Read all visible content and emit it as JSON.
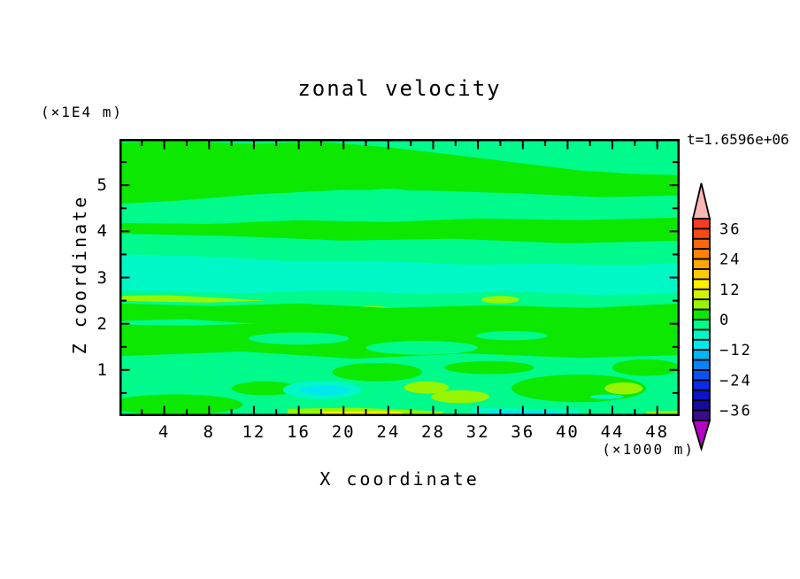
{
  "figure": {
    "title": "zonal velocity",
    "time_annotation": "t=1.6596e+06",
    "z_axis_unit": "(×1E4 m)",
    "x_axis_unit": "(×1000 m)",
    "x_axis_title": "X coordinate",
    "z_axis_title": "Z coordinate"
  },
  "chart_data": {
    "type": "heatmap",
    "subtype": "filled-contour",
    "title": "zonal velocity",
    "time_label": "t=1.6596e+06",
    "xlabel": "X coordinate",
    "ylabel": "Z coordinate",
    "x_unit": "(×1000 m)",
    "y_unit": "(×1E4 m)",
    "xlim": [
      0,
      50
    ],
    "ylim": [
      0,
      6
    ],
    "x_major_ticks": [
      4,
      8,
      12,
      16,
      20,
      24,
      28,
      32,
      36,
      40,
      44,
      48
    ],
    "x_minor_tick_step": 2,
    "y_major_ticks": [
      1,
      2,
      3,
      4,
      5
    ],
    "y_minor_tick_step": 0.5,
    "grid": false,
    "legend_position": "right-colorbar",
    "colorbar": {
      "min": -40,
      "max": 40,
      "level_step": 4,
      "tick_values": [
        36,
        24,
        12,
        0,
        -12,
        -24,
        -36
      ],
      "tick_labels": [
        "36",
        "24",
        "12",
        "0",
        "−12",
        "−24",
        "−36"
      ],
      "segment_colors_top_to_bottom": [
        "#f93c22",
        "#fb4a10",
        "#fd660a",
        "#fe8405",
        "#fea702",
        "#fdc902",
        "#fcf000",
        "#d2f200",
        "#97f500",
        "#0ce800",
        "#00fa8c",
        "#00f7c6",
        "#00e7ee",
        "#00b4f6",
        "#0883fa",
        "#0a52f2",
        "#0b2ce4",
        "#0b14c8",
        "#150c9c",
        "#3b0b8c"
      ],
      "over_arrow_color": "#f9b7b4",
      "under_arrow_color": "#b503c3"
    },
    "field_summary": "Zonal velocity section, values mostly between -8 and +8: spring-green (-4..0) background, green (0..4) bands near z=5, z=4 and z=1.3-2.4, turquoise (-8..-4) band near z=2.7-3.4 and patches near the bottom, chartreuse (4..8) streaks near z=2.5 and z=0.5, a yellow (12..16) streak at the bottom near x=18-25, and cyan (-12..-8) patches near x=18 z=0.6 and the bottom edge near x=33-39.",
    "base_value": -2,
    "regions": [
      {
        "v": 2,
        "shape": "poly",
        "pts": [
          [
            0,
            5.92
          ],
          [
            5,
            5.97
          ],
          [
            11,
            5.9
          ],
          [
            18,
            5.94
          ],
          [
            24,
            5.82
          ],
          [
            29,
            5.68
          ],
          [
            35,
            5.5
          ],
          [
            41,
            5.32
          ],
          [
            46,
            5.24
          ],
          [
            50,
            5.22
          ],
          [
            50,
            4.78
          ],
          [
            43,
            4.74
          ],
          [
            36,
            4.82
          ],
          [
            28,
            4.88
          ],
          [
            20,
            4.9
          ],
          [
            12,
            4.8
          ],
          [
            5,
            4.66
          ],
          [
            0,
            4.6
          ]
        ]
      },
      {
        "v": -2,
        "shape": "ellipse",
        "cx": 24,
        "cz": 4.8,
        "rx": 2.5,
        "rz": 0.12
      },
      {
        "v": 2,
        "shape": "poly",
        "pts": [
          [
            0,
            4.18
          ],
          [
            8,
            4.16
          ],
          [
            16,
            4.24
          ],
          [
            24,
            4.2
          ],
          [
            32,
            4.28
          ],
          [
            41,
            4.24
          ],
          [
            50,
            4.3
          ],
          [
            50,
            3.8
          ],
          [
            40,
            3.74
          ],
          [
            30,
            3.84
          ],
          [
            20,
            3.8
          ],
          [
            10,
            3.9
          ],
          [
            0,
            3.95
          ]
        ]
      },
      {
        "v": -6,
        "shape": "poly",
        "pts": [
          [
            0,
            3.5
          ],
          [
            7,
            3.46
          ],
          [
            15,
            3.36
          ],
          [
            23,
            3.36
          ],
          [
            31,
            3.28
          ],
          [
            39,
            3.3
          ],
          [
            45,
            3.26
          ],
          [
            50,
            3.32
          ],
          [
            50,
            2.66
          ],
          [
            43,
            2.62
          ],
          [
            35,
            2.7
          ],
          [
            27,
            2.64
          ],
          [
            19,
            2.72
          ],
          [
            11,
            2.66
          ],
          [
            0,
            2.72
          ]
        ]
      },
      {
        "v": 6,
        "shape": "poly",
        "pts": [
          [
            0,
            2.6
          ],
          [
            4,
            2.62
          ],
          [
            9,
            2.56
          ],
          [
            13,
            2.5
          ],
          [
            8,
            2.46
          ],
          [
            3,
            2.48
          ],
          [
            0,
            2.5
          ]
        ]
      },
      {
        "v": 6,
        "shape": "ellipse",
        "cx": 22.5,
        "cz": 2.3,
        "rx": 1.8,
        "rz": 0.08
      },
      {
        "v": 6,
        "shape": "ellipse",
        "cx": 34,
        "cz": 2.52,
        "rx": 1.7,
        "rz": 0.08
      },
      {
        "v": 22,
        "shape": "ellipse",
        "cx": 7.1,
        "cz": 2.08,
        "rx": 0.6,
        "rz": 0.045
      },
      {
        "v": 2,
        "shape": "poly",
        "pts": [
          [
            0,
            2.44
          ],
          [
            8,
            2.38
          ],
          [
            16,
            2.44
          ],
          [
            24,
            2.34
          ],
          [
            33,
            2.4
          ],
          [
            42,
            2.34
          ],
          [
            50,
            2.44
          ],
          [
            50,
            1.32
          ],
          [
            41,
            1.26
          ],
          [
            31,
            1.36
          ],
          [
            21,
            1.24
          ],
          [
            11,
            1.4
          ],
          [
            0,
            1.3
          ]
        ]
      },
      {
        "v": -2,
        "shape": "ellipse",
        "cx": 16,
        "cz": 1.68,
        "rx": 4.5,
        "rz": 0.13
      },
      {
        "v": -2,
        "shape": "ellipse",
        "cx": 27,
        "cz": 1.48,
        "rx": 5,
        "rz": 0.15
      },
      {
        "v": -2,
        "shape": "ellipse",
        "cx": 35,
        "cz": 1.74,
        "rx": 3.2,
        "rz": 0.1
      },
      {
        "v": -2,
        "shape": "poly",
        "pts": [
          [
            0,
            2.06
          ],
          [
            6,
            2.1
          ],
          [
            12,
            2.0
          ],
          [
            6,
            1.96
          ],
          [
            0,
            1.98
          ]
        ]
      },
      {
        "v": 2,
        "shape": "ellipse",
        "cx": 5,
        "cz": 0.25,
        "rx": 6,
        "rz": 0.22
      },
      {
        "v": 2,
        "shape": "ellipse",
        "cx": 13,
        "cz": 0.6,
        "rx": 3,
        "rz": 0.15
      },
      {
        "v": 2,
        "shape": "ellipse",
        "cx": 23,
        "cz": 0.95,
        "rx": 4,
        "rz": 0.2
      },
      {
        "v": 2,
        "shape": "ellipse",
        "cx": 41,
        "cz": 0.6,
        "rx": 6,
        "rz": 0.3
      },
      {
        "v": 2,
        "shape": "ellipse",
        "cx": 47,
        "cz": 1.05,
        "rx": 3,
        "rz": 0.18
      },
      {
        "v": 2,
        "shape": "ellipse",
        "cx": 33,
        "cz": 1.05,
        "rx": 4,
        "rz": 0.14
      },
      {
        "v": -6,
        "shape": "ellipse",
        "cx": 18.1,
        "cz": 0.57,
        "rx": 3.5,
        "rz": 0.2
      },
      {
        "v": -10,
        "shape": "ellipse",
        "cx": 18.3,
        "cz": 0.56,
        "rx": 2.2,
        "rz": 0.1
      },
      {
        "v": 6,
        "shape": "ellipse",
        "cx": 27.4,
        "cz": 0.62,
        "rx": 2.0,
        "rz": 0.13
      },
      {
        "v": 6,
        "shape": "ellipse",
        "cx": 30.4,
        "cz": 0.42,
        "rx": 2.6,
        "rz": 0.14
      },
      {
        "v": 6,
        "shape": "ellipse",
        "cx": 45,
        "cz": 0.6,
        "rx": 1.7,
        "rz": 0.13
      },
      {
        "v": -6,
        "shape": "ellipse",
        "cx": 43.5,
        "cz": 0.42,
        "rx": 1.5,
        "rz": 0.05
      },
      {
        "v": 6,
        "shape": "poly",
        "pts": [
          [
            15,
            0.16
          ],
          [
            21,
            0.18
          ],
          [
            29,
            0.1
          ],
          [
            28.5,
            0
          ],
          [
            15,
            0
          ]
        ]
      },
      {
        "v": 14,
        "shape": "poly",
        "pts": [
          [
            18,
            0.1
          ],
          [
            25,
            0.1
          ],
          [
            25.5,
            0.03
          ],
          [
            24,
            0
          ],
          [
            18.5,
            0
          ]
        ]
      },
      {
        "v": -6,
        "shape": "poly",
        "pts": [
          [
            31.5,
            0.18
          ],
          [
            41,
            0.13
          ],
          [
            41,
            0
          ],
          [
            31.5,
            0
          ]
        ]
      },
      {
        "v": -10,
        "shape": "poly",
        "pts": [
          [
            33,
            0.13
          ],
          [
            39,
            0.11
          ],
          [
            39,
            0
          ],
          [
            33,
            0
          ]
        ]
      },
      {
        "v": 6,
        "shape": "poly",
        "pts": [
          [
            47,
            0.1
          ],
          [
            50,
            0.12
          ],
          [
            50,
            0
          ],
          [
            47,
            0
          ]
        ]
      }
    ]
  }
}
